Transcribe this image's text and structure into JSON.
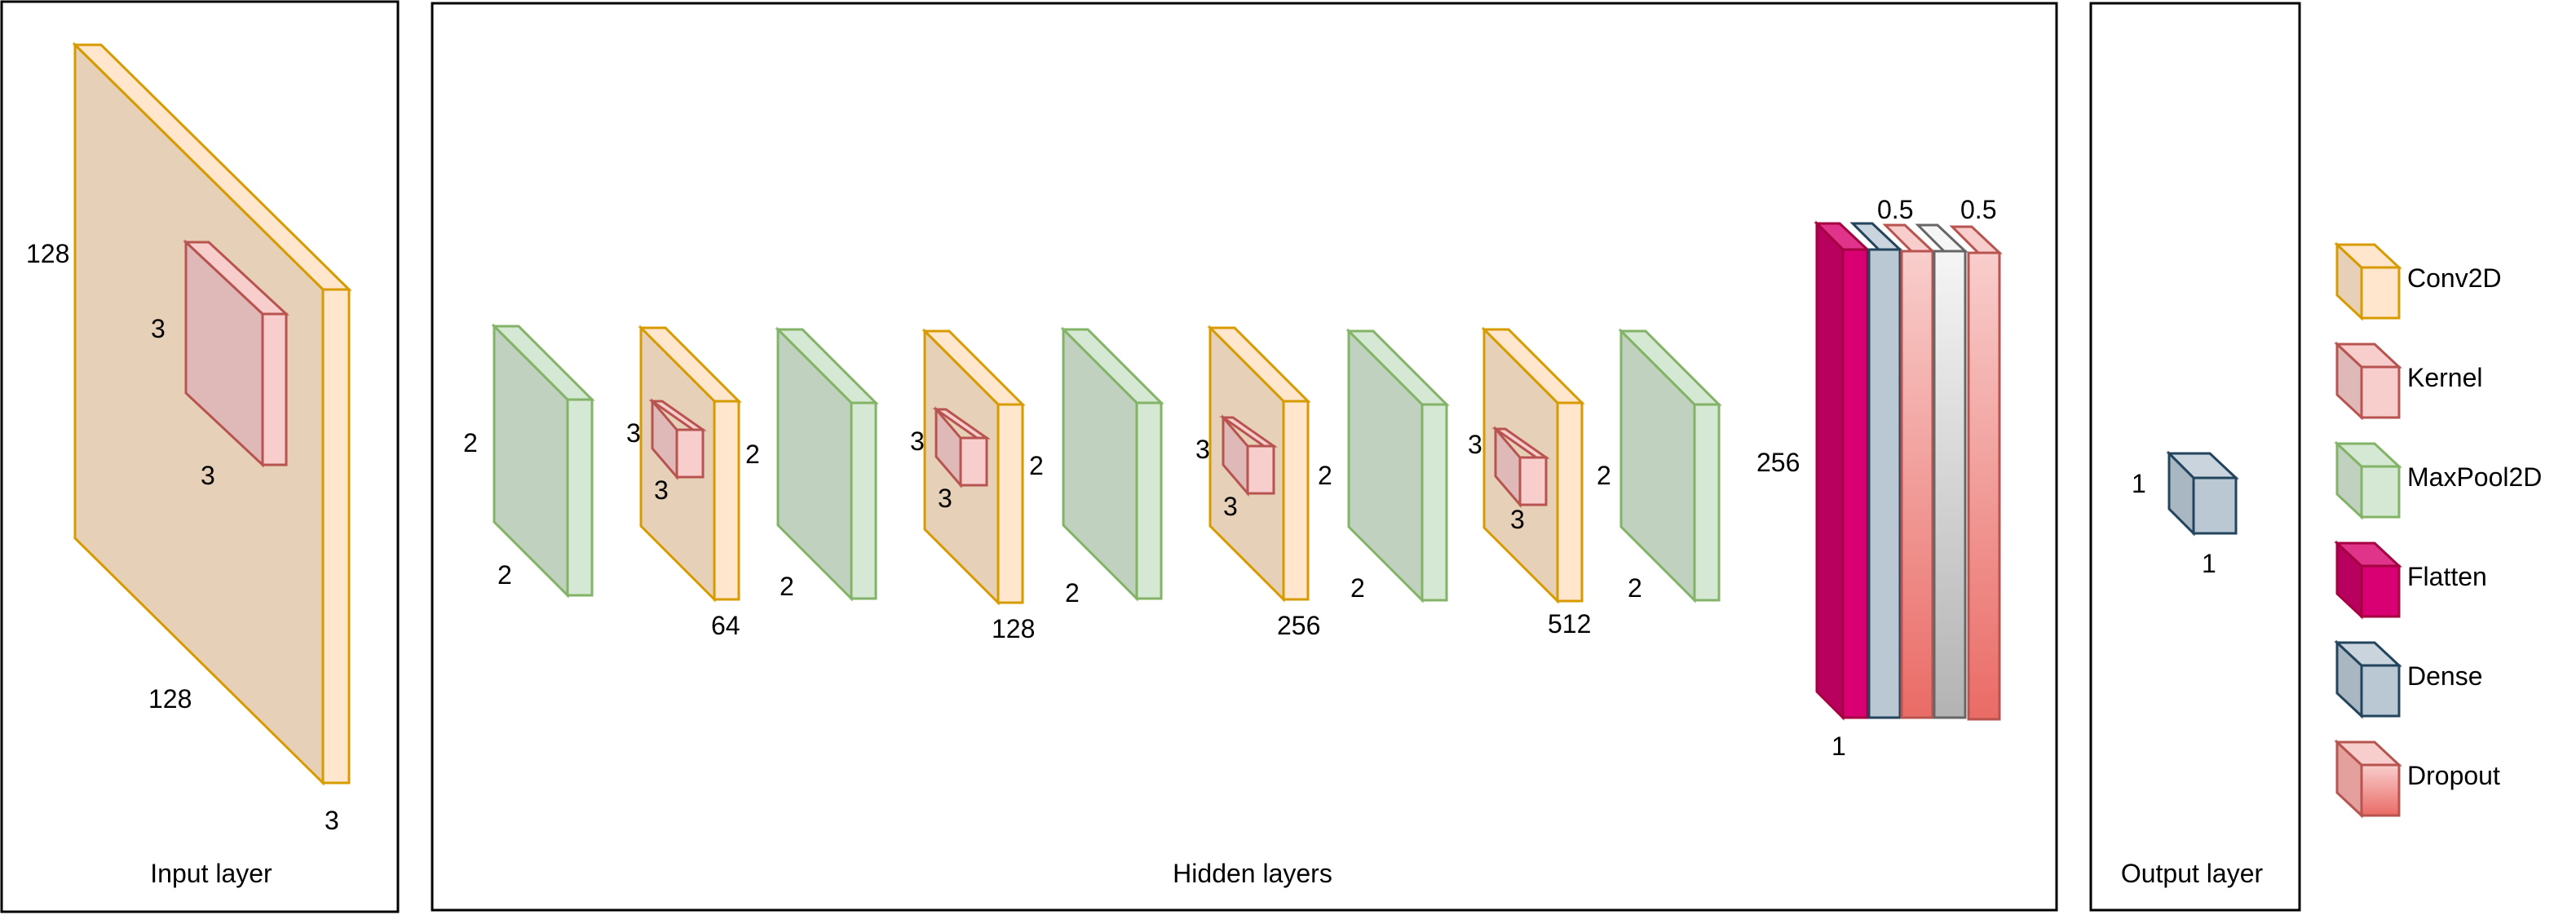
{
  "panels": {
    "input": {
      "title": "Input layer"
    },
    "hidden": {
      "title": "Hidden layers"
    },
    "output": {
      "title": "Output layer"
    }
  },
  "input_layer": {
    "conv_height": "128",
    "conv_width": "128",
    "conv_depth": "3",
    "kernel_height": "3",
    "kernel_width": "3"
  },
  "hidden_layers": {
    "pool_1": {
      "height": "2",
      "width": "2"
    },
    "conv_1": {
      "kernel_height": "3",
      "kernel_width": "3",
      "height": "2",
      "filters": "64"
    },
    "pool_2": {
      "width": "2"
    },
    "conv_2": {
      "kernel_height": "3",
      "kernel_width": "3",
      "height": "2",
      "filters": "128"
    },
    "pool_3": {
      "width": "2"
    },
    "conv_3": {
      "kernel_height": "3",
      "kernel_width": "3",
      "height": "2",
      "filters": "256"
    },
    "pool_4": {
      "width": "2"
    },
    "conv_4": {
      "kernel_height": "3",
      "kernel_width": "3",
      "height": "2",
      "filters": "512"
    },
    "pool_5": {
      "width": "2"
    },
    "flatten": {
      "height": "256",
      "width": "1"
    },
    "dropout_1": {
      "rate": "0.5"
    },
    "dropout_2": {
      "rate": "0.5"
    }
  },
  "output_layer": {
    "height": "1",
    "width": "1"
  },
  "legend": [
    {
      "label": "Conv2D",
      "face": "#ffe6cc",
      "stroke": "#d79b00"
    },
    {
      "label": "Kernel",
      "face": "#f8cecc",
      "stroke": "#b85450"
    },
    {
      "label": "MaxPool2D",
      "face": "#d5e8d4",
      "stroke": "#82b366"
    },
    {
      "label": "Flatten",
      "face": "#d80073",
      "stroke": "#a50040"
    },
    {
      "label": "Dense",
      "face": "#bac8d3",
      "stroke": "#23445d"
    },
    {
      "label": "Dropout",
      "face": "#f8cecc",
      "stroke": "#b85450"
    }
  ],
  "colors": {
    "conv_face": "#ffe6cc",
    "conv_side": "#e6d0b8",
    "conv_stroke": "#d79b00",
    "kernel_face": "#f8cecc",
    "kernel_side": "#dfb9b8",
    "kernel_stroke": "#b85450",
    "pool_face": "#d5e8d4",
    "pool_side": "#c0d1bf",
    "pool_stroke": "#82b366",
    "flatten_face": "#d80073",
    "flatten_stroke": "#a50040",
    "dense_face": "#bac8d3",
    "dense_stroke": "#23445d",
    "dropout_face": "#f8cecc",
    "dropout_grad": "#ea6b66",
    "dropout_stroke": "#b85450",
    "grey_face": "#f5f5f5",
    "grey_grad": "#b3b3b3",
    "grey_stroke": "#666666"
  }
}
